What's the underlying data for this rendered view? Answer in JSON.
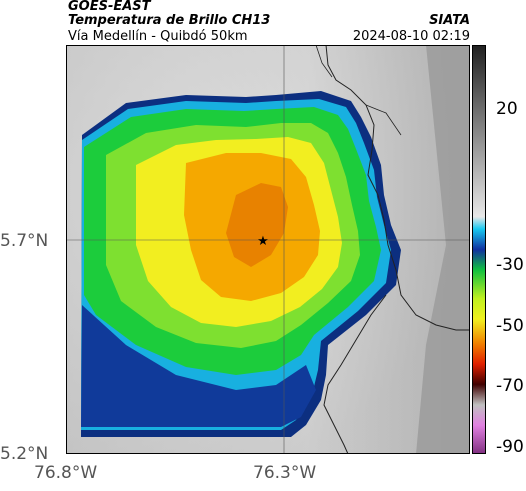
{
  "header": {
    "satellite": "GOES-EAST",
    "product": "Temperatura de Brillo CH13",
    "route": "Vía Medellín - Quibdó 50km",
    "agency": "SIATA",
    "datetime": "2024-08-10 02:19"
  },
  "axes": {
    "y_labels": [
      "5.7°N",
      "5.2°N"
    ],
    "x_labels": [
      "76.8°W",
      "76.3°W"
    ]
  },
  "colorbar": {
    "labels": [
      "20",
      "-30",
      "-50",
      "-70",
      "-90"
    ]
  },
  "marker": {
    "icon": "star-icon"
  },
  "colors": {
    "cold_purple": "#c060c0",
    "blue": "#1040a0",
    "cyan": "#10b8e0",
    "green": "#10d040",
    "yellow": "#f0f020",
    "orange": "#f0a000",
    "dark_orange": "#e87800",
    "gray_light": "#d8d8d8",
    "gray_dark": "#8c8c8c"
  }
}
